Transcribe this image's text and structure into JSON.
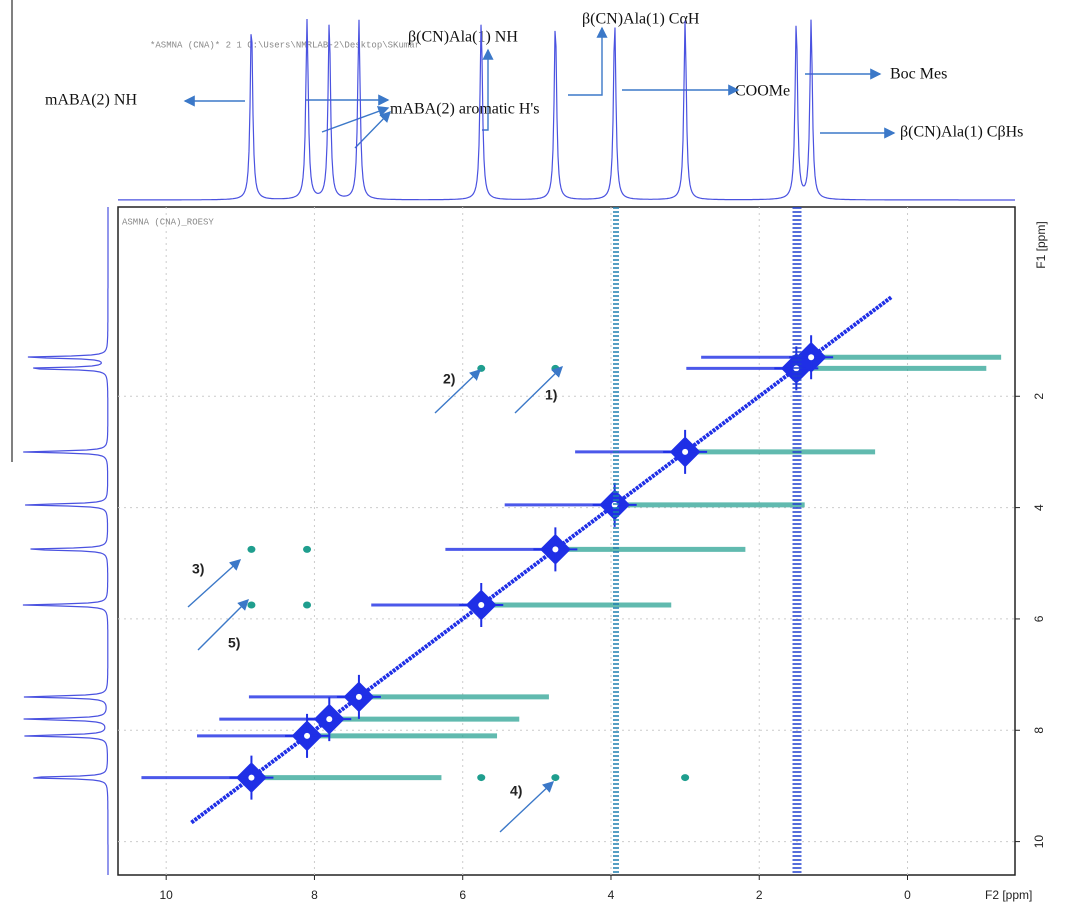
{
  "chart_data": {
    "type": "nmr-2d",
    "header": "*ASMNA (CNA)* 2 1 C:\\Users\\NMRLAB-2\\Desktop\\SKumar",
    "plot_label": "ASMNA (CNA)_ROESY",
    "xlabel": "F2 [ppm]",
    "ylabel": "F1 [ppm]",
    "xlim": [
      10.65,
      -1.45
    ],
    "ylim": [
      -1.4,
      10.6
    ],
    "xticks": [
      10,
      8,
      6,
      4,
      2,
      0
    ],
    "yticks": [
      2,
      4,
      6,
      8,
      10
    ],
    "grid": true,
    "diagonal": {
      "color": "#1f2fe6",
      "x": [
        8.85,
        8.1,
        7.8,
        7.4,
        5.75,
        4.75,
        3.95,
        3.0,
        1.5,
        1.3
      ],
      "y": [
        8.85,
        8.1,
        7.8,
        7.4,
        5.75,
        4.75,
        3.95,
        3.0,
        1.5,
        1.3
      ]
    },
    "cross": {
      "color": "#1f9e8e",
      "x": [
        5.75,
        4.75,
        8.85,
        8.85,
        4.75,
        5.75,
        3.0,
        8.1,
        8.1
      ],
      "y": [
        1.5,
        1.5,
        4.75,
        5.75,
        8.85,
        8.85,
        8.85,
        4.75,
        5.75
      ]
    },
    "annotations": [
      "mABA(2) NH",
      "β(CN)Ala(1) NH",
      "β(CN)Ala(1) CαH",
      "COOMe",
      "Boc Mes",
      "mABA(2) aromatic H's",
      "β(CN)Ala(1) CβHs"
    ],
    "peak_labels": [
      "1)",
      "2)",
      "3)",
      "4)",
      "5)"
    ]
  }
}
